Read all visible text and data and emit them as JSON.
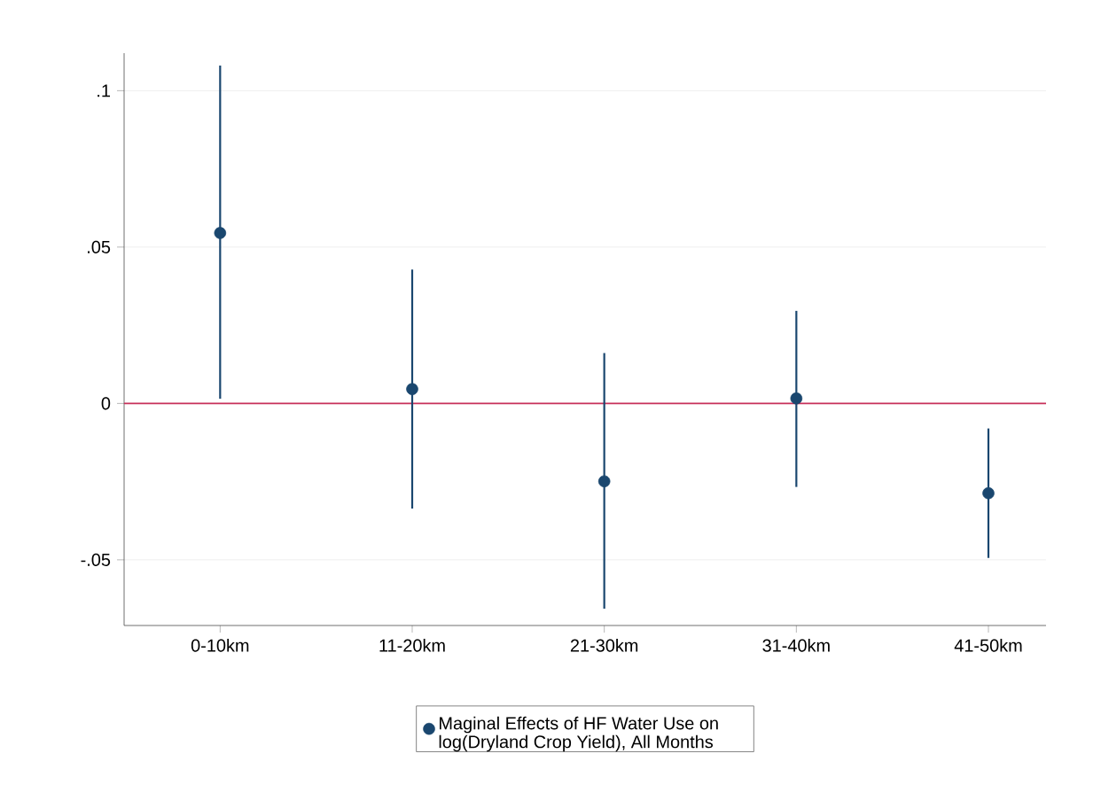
{
  "chart_data": {
    "type": "scatter",
    "categories": [
      "0-10km",
      "11-20km",
      "21-30km",
      "31-40km",
      "41-50km"
    ],
    "series": [
      {
        "name": "Maginal Effects of HF Water Use on log(Dryland Crop Yield), All Months",
        "color": "#1a476f",
        "values": [
          0.0545,
          0.0046,
          -0.0249,
          0.0016,
          -0.0287
        ],
        "errors": [
          [
            0.0015,
            0.108
          ],
          [
            -0.0336,
            0.0428
          ],
          [
            -0.0656,
            0.0161
          ],
          [
            -0.0267,
            0.0296
          ],
          [
            -0.0494,
            -0.008
          ]
        ]
      }
    ],
    "ylim": [
      -0.071,
      0.112
    ],
    "yticks": [
      {
        "value": -0.05,
        "label": "-.05"
      },
      0,
      {
        "value": 0.05,
        "label": ".05"
      },
      {
        "value": 0.1,
        "label": ".1"
      }
    ],
    "grid": "y",
    "legend": "bottom",
    "ref_lines": [
      {
        "axis": "y",
        "value": 0,
        "color": "#c8305a"
      }
    ]
  }
}
